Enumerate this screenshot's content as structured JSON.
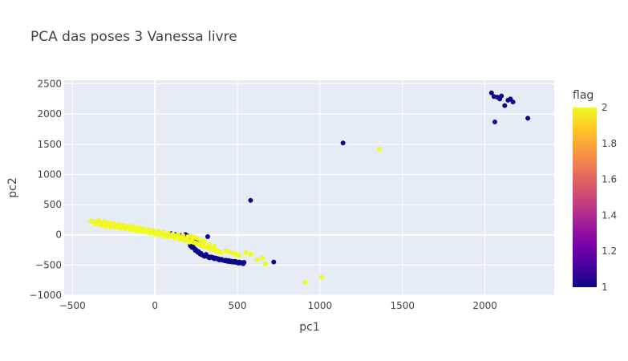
{
  "chart_data": {
    "type": "scatter",
    "title": "PCA das poses 3 Vanessa livre",
    "xlabel": "pc1",
    "ylabel": "pc2",
    "xlim": [
      -550,
      2420
    ],
    "ylim": [
      -1000,
      2560
    ],
    "x_ticks": [
      -500,
      0,
      500,
      1000,
      1500,
      2000
    ],
    "x_tick_labels": [
      "−500",
      "0",
      "500",
      "1000",
      "1500",
      "2000"
    ],
    "y_ticks": [
      -1000,
      -500,
      0,
      500,
      1000,
      1500,
      2000,
      2500
    ],
    "y_tick_labels": [
      "−1000",
      "−500",
      "0",
      "500",
      "1000",
      "1500",
      "2000",
      "2500"
    ],
    "grid": true,
    "plot_bg": "#e5ecf6",
    "colorbar": {
      "title": "flag",
      "min": 1,
      "max": 2,
      "ticks": [
        1,
        1.2,
        1.4,
        1.6,
        1.8,
        2
      ],
      "tick_labels": [
        "1",
        "1.2",
        "1.4",
        "1.6",
        "1.8",
        "2"
      ],
      "colorscale": [
        "#0d0887",
        "#46039f",
        "#7201a8",
        "#9c179e",
        "#bd3786",
        "#d8576b",
        "#ed7953",
        "#fb9f3a",
        "#fdca26",
        "#f0f921"
      ]
    },
    "series": [
      {
        "flag": 1,
        "color": "#0d0887",
        "points": [
          [
            2040,
            2350
          ],
          [
            2055,
            2290
          ],
          [
            2075,
            2280
          ],
          [
            2090,
            2250
          ],
          [
            2100,
            2300
          ],
          [
            2120,
            2140
          ],
          [
            2140,
            2230
          ],
          [
            2155,
            2250
          ],
          [
            2170,
            2200
          ],
          [
            2060,
            1870
          ],
          [
            2260,
            1930
          ],
          [
            1140,
            1520
          ],
          [
            580,
            570
          ],
          [
            720,
            -450
          ],
          [
            320,
            -30
          ],
          [
            140,
            0
          ],
          [
            155,
            -10
          ],
          [
            170,
            -15
          ],
          [
            185,
            5
          ],
          [
            200,
            -20
          ],
          [
            215,
            -150
          ],
          [
            230,
            -200
          ],
          [
            245,
            -260
          ],
          [
            260,
            -290
          ],
          [
            275,
            -320
          ],
          [
            290,
            -340
          ],
          [
            305,
            -350
          ],
          [
            320,
            -360
          ],
          [
            335,
            -370
          ],
          [
            350,
            -380
          ],
          [
            365,
            -390
          ],
          [
            380,
            -400
          ],
          [
            395,
            -410
          ],
          [
            410,
            -420
          ],
          [
            425,
            -430
          ],
          [
            440,
            -440
          ],
          [
            455,
            -445
          ],
          [
            470,
            -450
          ],
          [
            485,
            -455
          ],
          [
            500,
            -460
          ],
          [
            515,
            -465
          ],
          [
            530,
            -470
          ],
          [
            285,
            -330
          ],
          [
            300,
            -355
          ],
          [
            330,
            -380
          ],
          [
            360,
            -395
          ],
          [
            390,
            -415
          ],
          [
            420,
            -425
          ],
          [
            450,
            -432
          ],
          [
            480,
            -440
          ],
          [
            510,
            -450
          ],
          [
            540,
            -455
          ],
          [
            250,
            -250
          ],
          [
            270,
            -300
          ],
          [
            310,
            -340
          ],
          [
            340,
            -365
          ],
          [
            370,
            -385
          ],
          [
            400,
            -405
          ],
          [
            430,
            -420
          ],
          [
            460,
            -435
          ],
          [
            490,
            -442
          ],
          [
            520,
            -458
          ],
          [
            240,
            -230
          ],
          [
            280,
            -310
          ],
          [
            295,
            -345
          ],
          [
            345,
            -372
          ],
          [
            375,
            -392
          ],
          [
            405,
            -408
          ],
          [
            435,
            -428
          ],
          [
            465,
            -438
          ],
          [
            495,
            -452
          ],
          [
            525,
            -462
          ],
          [
            215,
            -180
          ],
          [
            225,
            -210
          ],
          [
            265,
            -280
          ],
          [
            310,
            -325
          ],
          [
            355,
            -375
          ],
          [
            385,
            -398
          ],
          [
            445,
            -425
          ],
          [
            475,
            -447
          ],
          [
            505,
            -468
          ],
          [
            535,
            -478
          ],
          [
            100,
            20
          ],
          [
            120,
            10
          ],
          [
            160,
            -25
          ],
          [
            190,
            -40
          ],
          [
            210,
            -60
          ],
          [
            230,
            -90
          ],
          [
            250,
            -120
          ],
          [
            270,
            -150
          ]
        ]
      },
      {
        "flag": 2,
        "color": "#f0f921",
        "points": [
          [
            -390,
            230
          ],
          [
            -380,
            225
          ],
          [
            -370,
            220
          ],
          [
            -360,
            215
          ],
          [
            -350,
            210
          ],
          [
            -340,
            205
          ],
          [
            -330,
            200
          ],
          [
            -320,
            195
          ],
          [
            -310,
            190
          ],
          [
            -300,
            185
          ],
          [
            -290,
            180
          ],
          [
            -280,
            175
          ],
          [
            -270,
            170
          ],
          [
            -260,
            165
          ],
          [
            -250,
            160
          ],
          [
            -240,
            155
          ],
          [
            -230,
            150
          ],
          [
            -220,
            145
          ],
          [
            -210,
            140
          ],
          [
            -200,
            135
          ],
          [
            -190,
            130
          ],
          [
            -180,
            125
          ],
          [
            -170,
            120
          ],
          [
            -160,
            115
          ],
          [
            -150,
            110
          ],
          [
            -140,
            105
          ],
          [
            -130,
            100
          ],
          [
            -120,
            95
          ],
          [
            -110,
            90
          ],
          [
            -100,
            85
          ],
          [
            -90,
            80
          ],
          [
            -80,
            75
          ],
          [
            -70,
            70
          ],
          [
            -60,
            65
          ],
          [
            -50,
            60
          ],
          [
            -40,
            55
          ],
          [
            -30,
            50
          ],
          [
            -20,
            45
          ],
          [
            -10,
            40
          ],
          [
            0,
            35
          ],
          [
            10,
            30
          ],
          [
            20,
            25
          ],
          [
            30,
            20
          ],
          [
            40,
            15
          ],
          [
            50,
            10
          ],
          [
            60,
            5
          ],
          [
            70,
            0
          ],
          [
            80,
            -5
          ],
          [
            90,
            -10
          ],
          [
            100,
            -15
          ],
          [
            110,
            -20
          ],
          [
            120,
            -25
          ],
          [
            130,
            -30
          ],
          [
            140,
            -40
          ],
          [
            150,
            -50
          ],
          [
            160,
            -55
          ],
          [
            170,
            -60
          ],
          [
            180,
            -70
          ],
          [
            190,
            -80
          ],
          [
            200,
            -90
          ],
          [
            210,
            -100
          ],
          [
            220,
            -110
          ],
          [
            230,
            -120
          ],
          [
            240,
            -130
          ],
          [
            250,
            -140
          ],
          [
            260,
            -150
          ],
          [
            270,
            -160
          ],
          [
            280,
            -170
          ],
          [
            290,
            -180
          ],
          [
            300,
            -190
          ],
          [
            310,
            -200
          ],
          [
            320,
            -210
          ],
          [
            330,
            -220
          ],
          [
            340,
            -230
          ],
          [
            350,
            -240
          ],
          [
            360,
            -250
          ],
          [
            370,
            -260
          ],
          [
            380,
            -270
          ],
          [
            390,
            -280
          ],
          [
            400,
            -290
          ],
          [
            -360,
            180
          ],
          [
            -330,
            160
          ],
          [
            -300,
            140
          ],
          [
            -270,
            130
          ],
          [
            -240,
            120
          ],
          [
            -210,
            110
          ],
          [
            -180,
            100
          ],
          [
            -150,
            90
          ],
          [
            -120,
            70
          ],
          [
            -90,
            60
          ],
          [
            -60,
            50
          ],
          [
            -30,
            30
          ],
          [
            0,
            10
          ],
          [
            30,
            0
          ],
          [
            60,
            -20
          ],
          [
            90,
            -30
          ],
          [
            120,
            -50
          ],
          [
            150,
            -70
          ],
          [
            180,
            -90
          ],
          [
            210,
            -120
          ],
          [
            -340,
            240
          ],
          [
            -310,
            220
          ],
          [
            -280,
            205
          ],
          [
            -250,
            190
          ],
          [
            -220,
            175
          ],
          [
            -190,
            160
          ],
          [
            -160,
            150
          ],
          [
            -130,
            135
          ],
          [
            -100,
            120
          ],
          [
            -70,
            105
          ],
          [
            -40,
            90
          ],
          [
            -10,
            75
          ],
          [
            20,
            60
          ],
          [
            50,
            45
          ],
          [
            80,
            30
          ],
          [
            110,
            15
          ],
          [
            140,
            5
          ],
          [
            170,
            -10
          ],
          [
            200,
            -30
          ],
          [
            230,
            -50
          ],
          [
            430,
            -260
          ],
          [
            450,
            -280
          ],
          [
            470,
            -300
          ],
          [
            490,
            -320
          ],
          [
            510,
            -340
          ],
          [
            550,
            -290
          ],
          [
            580,
            -320
          ],
          [
            620,
            -410
          ],
          [
            650,
            -380
          ],
          [
            670,
            -480
          ],
          [
            910,
            -780
          ],
          [
            1010,
            -700
          ],
          [
            1360,
            1420
          ],
          [
            260,
            -60
          ],
          [
            240,
            -40
          ],
          [
            220,
            -20
          ],
          [
            280,
            -90
          ],
          [
            300,
            -110
          ],
          [
            330,
            -160
          ],
          [
            360,
            -190
          ]
        ]
      }
    ]
  }
}
